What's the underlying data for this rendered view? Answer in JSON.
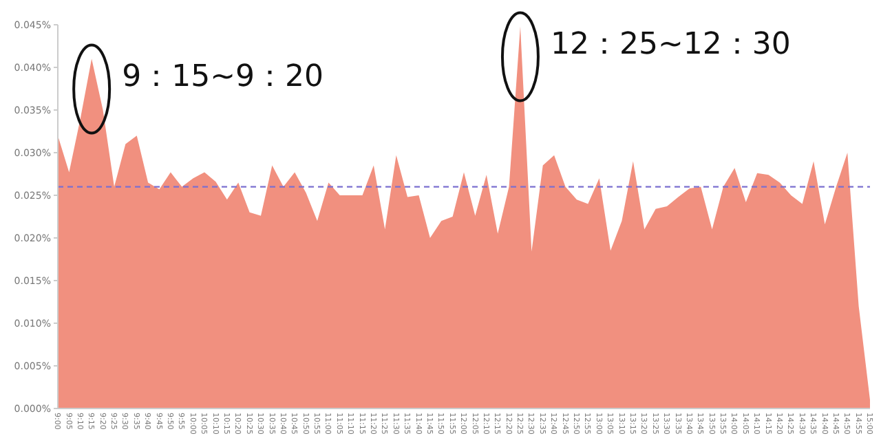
{
  "chart_data": {
    "type": "area",
    "categories": [
      "9:00",
      "9:05",
      "9:10",
      "9:15",
      "9:20",
      "9:25",
      "9:30",
      "9:35",
      "9:40",
      "9:45",
      "9:50",
      "9:55",
      "10:00",
      "10:05",
      "10:10",
      "10:15",
      "10:20",
      "10:25",
      "10:30",
      "10:35",
      "10:40",
      "10:45",
      "10:50",
      "10:55",
      "11:00",
      "11:05",
      "11:10",
      "11:15",
      "11:20",
      "11:25",
      "11:30",
      "11:35",
      "11:40",
      "11:45",
      "11:50",
      "11:55",
      "12:00",
      "12:05",
      "12:10",
      "12:15",
      "12:20",
      "12:25",
      "12:30",
      "12:35",
      "12:40",
      "12:45",
      "12:50",
      "12:55",
      "13:00",
      "13:05",
      "13:10",
      "13:15",
      "13:20",
      "13:25",
      "13:30",
      "13:35",
      "13:40",
      "13:45",
      "13:50",
      "13:55",
      "14:00",
      "14:05",
      "14:10",
      "14:15",
      "14:20",
      "14:25",
      "14:30",
      "14:35",
      "14:40",
      "14:45",
      "14:50",
      "14:55",
      "15:00"
    ],
    "series": [
      {
        "color": "#f1907f",
        "values": [
          0.032,
          0.0277,
          0.034,
          0.041,
          0.035,
          0.026,
          0.031,
          0.032,
          0.0265,
          0.0257,
          0.0277,
          0.026,
          0.027,
          0.0277,
          0.0266,
          0.0245,
          0.0265,
          0.023,
          0.0226,
          0.0285,
          0.026,
          0.0277,
          0.0253,
          0.022,
          0.0265,
          0.025,
          0.025,
          0.025,
          0.0285,
          0.021,
          0.0297,
          0.0248,
          0.025,
          0.02,
          0.022,
          0.0225,
          0.0277,
          0.0226,
          0.0274,
          0.0205,
          0.026,
          0.0448,
          0.0184,
          0.0285,
          0.0297,
          0.026,
          0.0245,
          0.024,
          0.027,
          0.0185,
          0.022,
          0.029,
          0.021,
          0.0234,
          0.0237,
          0.0248,
          0.0258,
          0.026,
          0.021,
          0.026,
          0.0282,
          0.0242,
          0.0276,
          0.0274,
          0.0265,
          0.025,
          0.024,
          0.029,
          0.0216,
          0.026,
          0.03,
          0.012,
          0.001
        ]
      }
    ],
    "ylim": [
      0,
      0.045
    ],
    "yticks": [
      {
        "value": 0,
        "label": "0.000%"
      },
      {
        "value": 0.005,
        "label": "0.005%"
      },
      {
        "value": 0.01,
        "label": "0.010%"
      },
      {
        "value": 0.015,
        "label": "0.015%"
      },
      {
        "value": 0.02,
        "label": "0.020%"
      },
      {
        "value": 0.025,
        "label": "0.025%"
      },
      {
        "value": 0.03,
        "label": "0.030%"
      },
      {
        "value": 0.035,
        "label": "0.035%"
      },
      {
        "value": 0.04,
        "label": "0.040%"
      },
      {
        "value": 0.045,
        "label": "0.045%"
      }
    ],
    "ref_lines": [
      {
        "axis": "y",
        "value": 0.026,
        "color": "#7b6fd0",
        "line_style": "dashed"
      }
    ],
    "annotations": [
      {
        "text": "9：15~9：20",
        "x": "9:15",
        "y": 0.041
      },
      {
        "text": "12：25~12：30",
        "x": "12:25",
        "y": 0.0448
      }
    ]
  }
}
